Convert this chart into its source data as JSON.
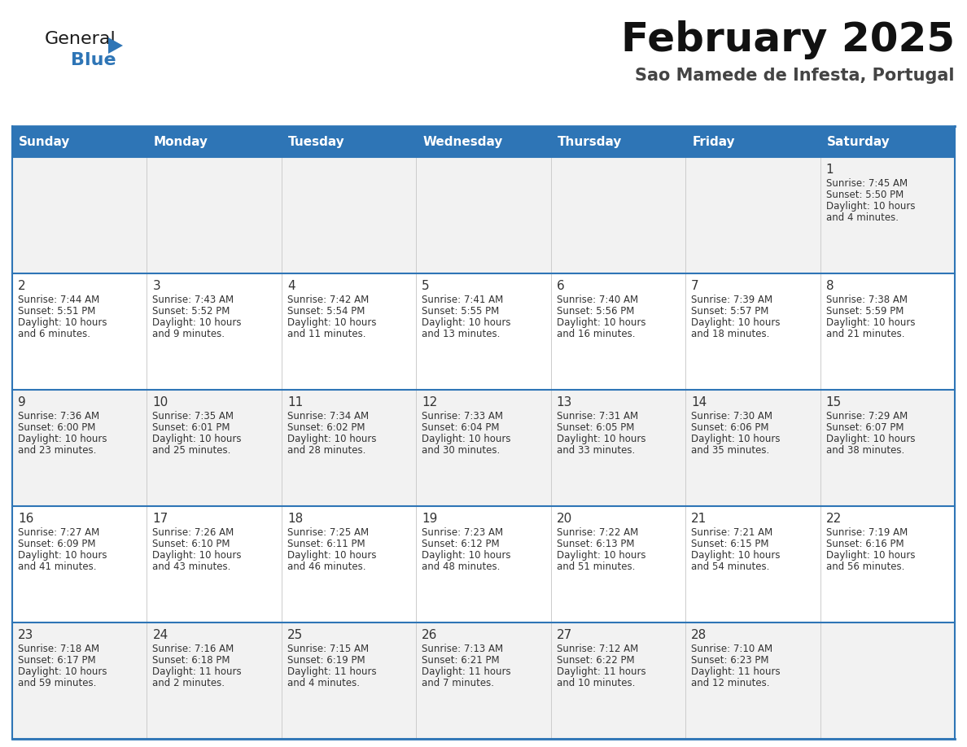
{
  "title": "February 2025",
  "subtitle": "Sao Mamede de Infesta, Portugal",
  "header_color": "#2E75B6",
  "header_text_color": "#FFFFFF",
  "cell_bg_even": "#F2F2F2",
  "cell_bg_odd": "#FFFFFF",
  "border_color": "#2E75B6",
  "text_color": "#333333",
  "day_num_color": "#333333",
  "day_headers": [
    "Sunday",
    "Monday",
    "Tuesday",
    "Wednesday",
    "Thursday",
    "Friday",
    "Saturday"
  ],
  "days": [
    {
      "day": 1,
      "col": 6,
      "row": 0,
      "sunrise": "7:45 AM",
      "sunset": "5:50 PM",
      "daylight": "10 hours",
      "daylight2": "and 4 minutes."
    },
    {
      "day": 2,
      "col": 0,
      "row": 1,
      "sunrise": "7:44 AM",
      "sunset": "5:51 PM",
      "daylight": "10 hours",
      "daylight2": "and 6 minutes."
    },
    {
      "day": 3,
      "col": 1,
      "row": 1,
      "sunrise": "7:43 AM",
      "sunset": "5:52 PM",
      "daylight": "10 hours",
      "daylight2": "and 9 minutes."
    },
    {
      "day": 4,
      "col": 2,
      "row": 1,
      "sunrise": "7:42 AM",
      "sunset": "5:54 PM",
      "daylight": "10 hours",
      "daylight2": "and 11 minutes."
    },
    {
      "day": 5,
      "col": 3,
      "row": 1,
      "sunrise": "7:41 AM",
      "sunset": "5:55 PM",
      "daylight": "10 hours",
      "daylight2": "and 13 minutes."
    },
    {
      "day": 6,
      "col": 4,
      "row": 1,
      "sunrise": "7:40 AM",
      "sunset": "5:56 PM",
      "daylight": "10 hours",
      "daylight2": "and 16 minutes."
    },
    {
      "day": 7,
      "col": 5,
      "row": 1,
      "sunrise": "7:39 AM",
      "sunset": "5:57 PM",
      "daylight": "10 hours",
      "daylight2": "and 18 minutes."
    },
    {
      "day": 8,
      "col": 6,
      "row": 1,
      "sunrise": "7:38 AM",
      "sunset": "5:59 PM",
      "daylight": "10 hours",
      "daylight2": "and 21 minutes."
    },
    {
      "day": 9,
      "col": 0,
      "row": 2,
      "sunrise": "7:36 AM",
      "sunset": "6:00 PM",
      "daylight": "10 hours",
      "daylight2": "and 23 minutes."
    },
    {
      "day": 10,
      "col": 1,
      "row": 2,
      "sunrise": "7:35 AM",
      "sunset": "6:01 PM",
      "daylight": "10 hours",
      "daylight2": "and 25 minutes."
    },
    {
      "day": 11,
      "col": 2,
      "row": 2,
      "sunrise": "7:34 AM",
      "sunset": "6:02 PM",
      "daylight": "10 hours",
      "daylight2": "and 28 minutes."
    },
    {
      "day": 12,
      "col": 3,
      "row": 2,
      "sunrise": "7:33 AM",
      "sunset": "6:04 PM",
      "daylight": "10 hours",
      "daylight2": "and 30 minutes."
    },
    {
      "day": 13,
      "col": 4,
      "row": 2,
      "sunrise": "7:31 AM",
      "sunset": "6:05 PM",
      "daylight": "10 hours",
      "daylight2": "and 33 minutes."
    },
    {
      "day": 14,
      "col": 5,
      "row": 2,
      "sunrise": "7:30 AM",
      "sunset": "6:06 PM",
      "daylight": "10 hours",
      "daylight2": "and 35 minutes."
    },
    {
      "day": 15,
      "col": 6,
      "row": 2,
      "sunrise": "7:29 AM",
      "sunset": "6:07 PM",
      "daylight": "10 hours",
      "daylight2": "and 38 minutes."
    },
    {
      "day": 16,
      "col": 0,
      "row": 3,
      "sunrise": "7:27 AM",
      "sunset": "6:09 PM",
      "daylight": "10 hours",
      "daylight2": "and 41 minutes."
    },
    {
      "day": 17,
      "col": 1,
      "row": 3,
      "sunrise": "7:26 AM",
      "sunset": "6:10 PM",
      "daylight": "10 hours",
      "daylight2": "and 43 minutes."
    },
    {
      "day": 18,
      "col": 2,
      "row": 3,
      "sunrise": "7:25 AM",
      "sunset": "6:11 PM",
      "daylight": "10 hours",
      "daylight2": "and 46 minutes."
    },
    {
      "day": 19,
      "col": 3,
      "row": 3,
      "sunrise": "7:23 AM",
      "sunset": "6:12 PM",
      "daylight": "10 hours",
      "daylight2": "and 48 minutes."
    },
    {
      "day": 20,
      "col": 4,
      "row": 3,
      "sunrise": "7:22 AM",
      "sunset": "6:13 PM",
      "daylight": "10 hours",
      "daylight2": "and 51 minutes."
    },
    {
      "day": 21,
      "col": 5,
      "row": 3,
      "sunrise": "7:21 AM",
      "sunset": "6:15 PM",
      "daylight": "10 hours",
      "daylight2": "and 54 minutes."
    },
    {
      "day": 22,
      "col": 6,
      "row": 3,
      "sunrise": "7:19 AM",
      "sunset": "6:16 PM",
      "daylight": "10 hours",
      "daylight2": "and 56 minutes."
    },
    {
      "day": 23,
      "col": 0,
      "row": 4,
      "sunrise": "7:18 AM",
      "sunset": "6:17 PM",
      "daylight": "10 hours",
      "daylight2": "and 59 minutes."
    },
    {
      "day": 24,
      "col": 1,
      "row": 4,
      "sunrise": "7:16 AM",
      "sunset": "6:18 PM",
      "daylight": "11 hours",
      "daylight2": "and 2 minutes."
    },
    {
      "day": 25,
      "col": 2,
      "row": 4,
      "sunrise": "7:15 AM",
      "sunset": "6:19 PM",
      "daylight": "11 hours",
      "daylight2": "and 4 minutes."
    },
    {
      "day": 26,
      "col": 3,
      "row": 4,
      "sunrise": "7:13 AM",
      "sunset": "6:21 PM",
      "daylight": "11 hours",
      "daylight2": "and 7 minutes."
    },
    {
      "day": 27,
      "col": 4,
      "row": 4,
      "sunrise": "7:12 AM",
      "sunset": "6:22 PM",
      "daylight": "11 hours",
      "daylight2": "and 10 minutes."
    },
    {
      "day": 28,
      "col": 5,
      "row": 4,
      "sunrise": "7:10 AM",
      "sunset": "6:23 PM",
      "daylight": "11 hours",
      "daylight2": "and 12 minutes."
    }
  ],
  "num_rows": 5,
  "num_cols": 7,
  "logo_text_general": "General",
  "logo_text_blue": "Blue",
  "logo_color_general": "#1a1a1a",
  "logo_color_blue": "#2E75B6",
  "logo_triangle_color": "#2E75B6",
  "title_fontsize": 36,
  "subtitle_fontsize": 15,
  "header_fontsize": 11,
  "day_num_fontsize": 11,
  "cell_text_fontsize": 8.5
}
